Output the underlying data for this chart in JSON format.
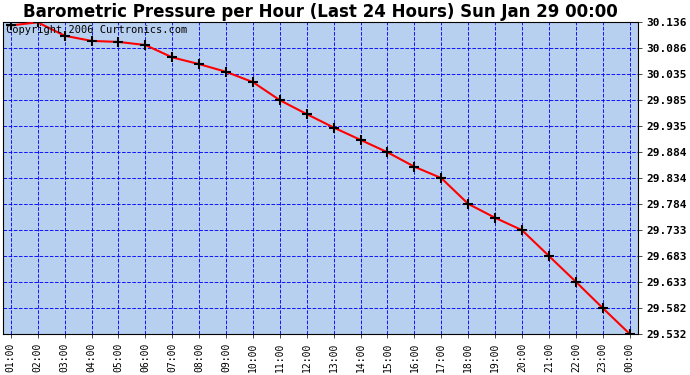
{
  "title": "Barometric Pressure per Hour (Last 24 Hours) Sun Jan 29 00:00",
  "copyright": "Copyright 2006 Curtronics.com",
  "x_labels": [
    "01:00",
    "02:00",
    "03:00",
    "04:00",
    "05:00",
    "06:00",
    "07:00",
    "08:00",
    "09:00",
    "10:00",
    "11:00",
    "12:00",
    "13:00",
    "14:00",
    "15:00",
    "16:00",
    "17:00",
    "18:00",
    "19:00",
    "20:00",
    "21:00",
    "22:00",
    "23:00",
    "00:00"
  ],
  "y_values": [
    30.13,
    30.136,
    30.11,
    30.1,
    30.098,
    30.092,
    30.068,
    30.055,
    30.04,
    30.02,
    29.985,
    29.958,
    29.932,
    29.908,
    29.884,
    29.856,
    29.834,
    29.784,
    29.757,
    29.733,
    29.683,
    29.633,
    29.582,
    29.532
  ],
  "y_tick_labels": [
    "30.136",
    "30.086",
    "30.035",
    "29.985",
    "29.935",
    "29.884",
    "29.834",
    "29.784",
    "29.733",
    "29.683",
    "29.633",
    "29.582",
    "29.532"
  ],
  "y_tick_values": [
    30.136,
    30.086,
    30.035,
    29.985,
    29.935,
    29.884,
    29.834,
    29.784,
    29.733,
    29.683,
    29.633,
    29.582,
    29.532
  ],
  "y_min": 29.532,
  "y_max": 30.136,
  "line_color": "red",
  "marker_color": "darkred",
  "bg_color": "#b8d0f0",
  "fig_bg_color": "#ffffff",
  "grid_color": "blue",
  "title_fontsize": 12,
  "copyright_fontsize": 7.5
}
